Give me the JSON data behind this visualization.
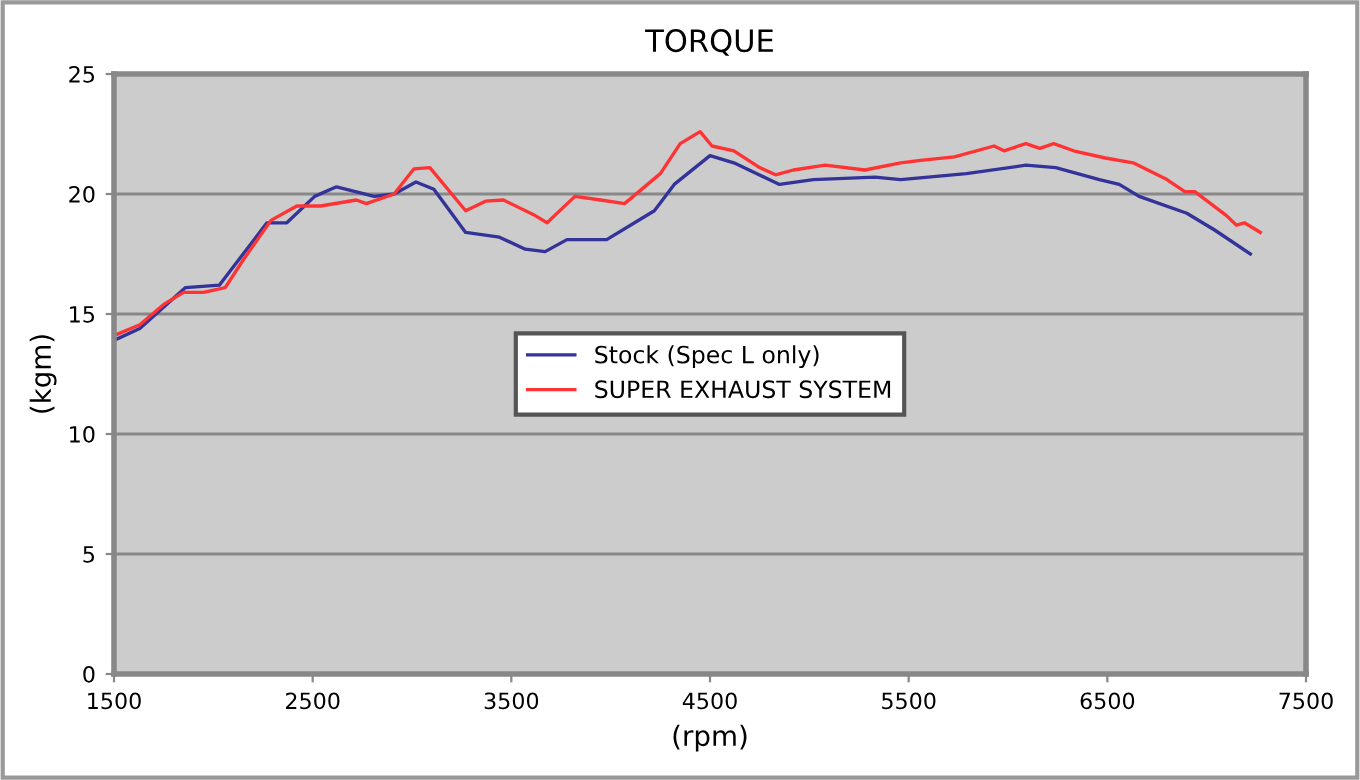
{
  "chart_data": {
    "type": "line",
    "title": "TORQUE",
    "xlabel": "(rpm)",
    "ylabel": "(kgm)",
    "xlim": [
      1500,
      7500
    ],
    "xticks": [
      1500,
      2500,
      3500,
      4500,
      5500,
      6500,
      7500
    ],
    "ylim": [
      0,
      25
    ],
    "yticks": [
      0,
      5,
      10,
      15,
      20,
      25
    ],
    "grid": "y",
    "legend": "center",
    "marker": "none",
    "line_style": "solid",
    "series": [
      {
        "name": "Stock (Spec L only)",
        "color": "#333399",
        "x": [
          1500,
          1630,
          1860,
          2030,
          2270,
          2370,
          2510,
          2620,
          2810,
          2910,
          3020,
          3110,
          3270,
          3440,
          3570,
          3670,
          3780,
          3980,
          4220,
          4320,
          4500,
          4620,
          4850,
          5020,
          5330,
          5460,
          5790,
          6090,
          6240,
          6460,
          6560,
          6660,
          6900,
          7040,
          7220
        ],
        "values": [
          13.9,
          14.4,
          16.1,
          16.2,
          18.8,
          18.8,
          19.9,
          20.3,
          19.9,
          20.0,
          20.5,
          20.2,
          18.4,
          18.2,
          17.7,
          17.6,
          18.1,
          18.1,
          19.3,
          20.4,
          21.6,
          21.3,
          20.4,
          20.6,
          20.7,
          20.6,
          20.85,
          21.2,
          21.1,
          20.6,
          20.4,
          19.9,
          19.2,
          18.5,
          17.5
        ]
      },
      {
        "name": "SUPER EXHAUST SYSTEM",
        "color": "#ff3333",
        "x": [
          1500,
          1630,
          1750,
          1850,
          1950,
          2060,
          2150,
          2290,
          2420,
          2540,
          2720,
          2770,
          2910,
          3010,
          3090,
          3270,
          3370,
          3460,
          3620,
          3680,
          3820,
          3950,
          4070,
          4250,
          4350,
          4450,
          4510,
          4620,
          4750,
          4830,
          4920,
          5080,
          5280,
          5460,
          5560,
          5730,
          5930,
          5980,
          6090,
          6160,
          6230,
          6330,
          6490,
          6630,
          6800,
          6890,
          6940,
          7100,
          7150,
          7190,
          7270
        ],
        "values": [
          14.1,
          14.55,
          15.4,
          15.9,
          15.9,
          16.1,
          17.25,
          18.9,
          19.5,
          19.5,
          19.75,
          19.6,
          20.0,
          21.05,
          21.1,
          19.3,
          19.7,
          19.75,
          19.1,
          18.8,
          19.9,
          19.75,
          19.6,
          20.85,
          22.1,
          22.6,
          22.0,
          21.8,
          21.1,
          20.8,
          21.0,
          21.2,
          21.0,
          21.3,
          21.4,
          21.55,
          22.0,
          21.8,
          22.1,
          21.9,
          22.1,
          21.8,
          21.5,
          21.3,
          20.6,
          20.1,
          20.1,
          19.1,
          18.7,
          18.8,
          18.4
        ]
      }
    ]
  }
}
